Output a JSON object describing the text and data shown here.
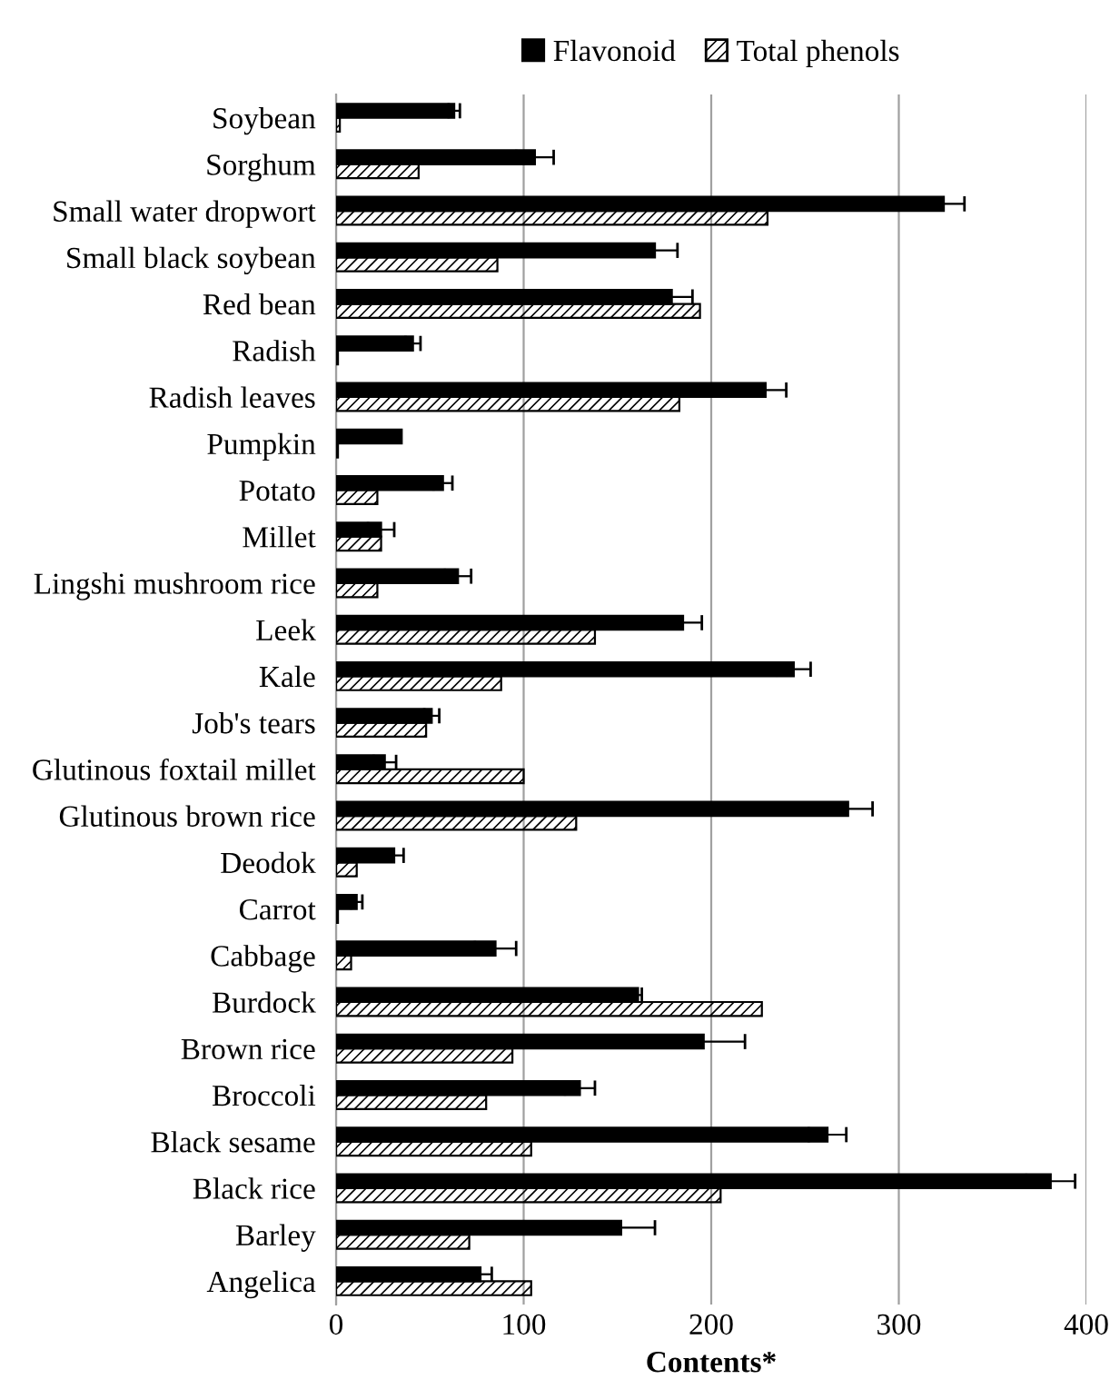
{
  "chart_data": {
    "type": "bar",
    "orientation": "horizontal",
    "xlabel": "Contents*",
    "categories": [
      "Soybean",
      "Sorghum",
      "Small water dropwort",
      "Small black soybean",
      "Red bean",
      "Radish",
      "Radish leaves",
      "Pumpkin",
      "Potato",
      "Millet",
      "Lingshi mushroom rice",
      "Leek",
      "Kale",
      "Job's tears",
      "Glutinous foxtail millet",
      "Glutinous brown rice",
      "Deodok",
      "Carrot",
      "Cabbage",
      "Burdock",
      "Brown rice",
      "Broccoli",
      "Black sesame",
      "Black rice",
      "Barley",
      "Angelica"
    ],
    "series": [
      {
        "name": "Flavonoid",
        "color": "#000000",
        "values": [
          63,
          106,
          324,
          170,
          179,
          41,
          229,
          35,
          57,
          24,
          65,
          185,
          244,
          51,
          26,
          273,
          31,
          11,
          85,
          161,
          196,
          130,
          262,
          381,
          152,
          77
        ],
        "errors": [
          3,
          10,
          11,
          12,
          11,
          4,
          11,
          null,
          5,
          7,
          7,
          10,
          9,
          4,
          6,
          13,
          5,
          3,
          11,
          2,
          22,
          8,
          10,
          13,
          18,
          6
        ]
      },
      {
        "name": "Total phenols",
        "color": "#000000",
        "values": [
          2,
          44,
          230,
          86,
          194,
          1,
          183,
          1,
          22,
          24,
          22,
          138,
          88,
          48,
          100,
          128,
          11,
          1,
          8,
          227,
          94,
          80,
          104,
          205,
          71,
          104
        ]
      }
    ],
    "xlim": [
      0,
      400
    ],
    "xticks": [
      0,
      100,
      200,
      300,
      400
    ],
    "grid": "x",
    "legend": "top"
  }
}
